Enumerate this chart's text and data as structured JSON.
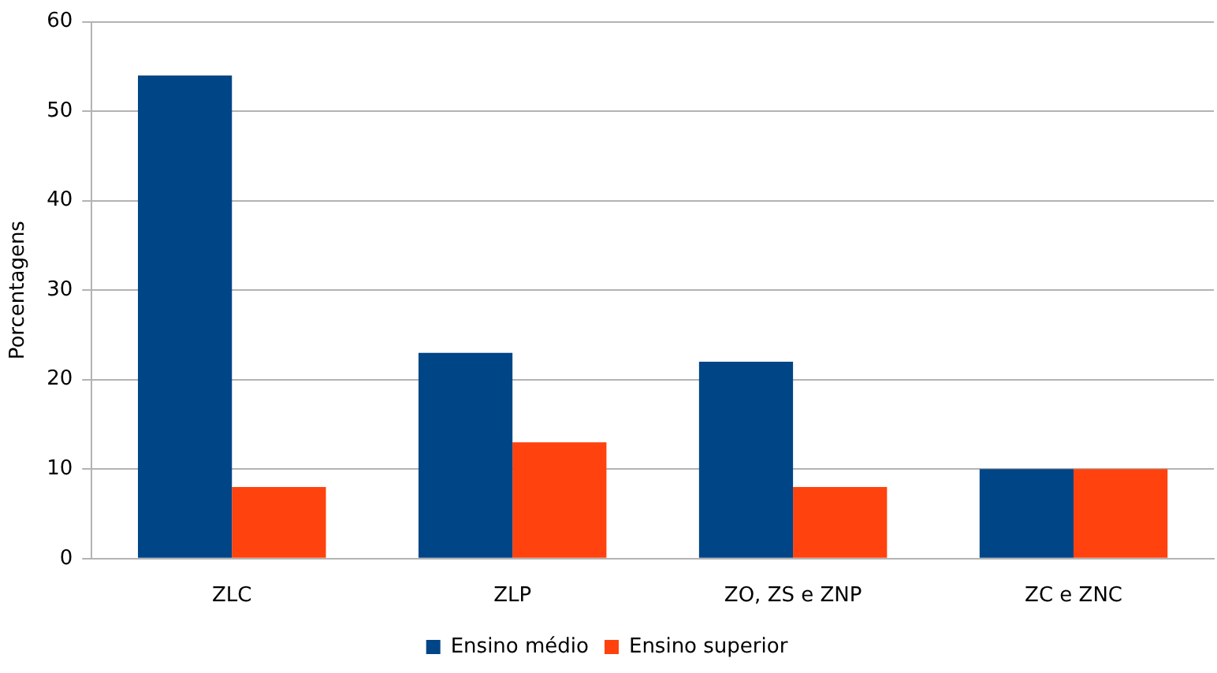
{
  "chart_data": {
    "type": "bar",
    "ylabel": "Porcentagens",
    "categories": [
      "ZLC",
      "ZLP",
      "ZO, ZS e ZNP",
      "ZC e ZNC"
    ],
    "series": [
      {
        "name": "Ensino médio",
        "color": "#004586",
        "values": [
          54,
          23,
          22,
          10
        ]
      },
      {
        "name": "Ensino superior",
        "color": "#ff420e",
        "values": [
          8,
          13,
          8,
          10
        ]
      }
    ],
    "ylim": [
      0,
      60
    ],
    "yticks": [
      0,
      10,
      20,
      30,
      40,
      50,
      60
    ],
    "grid": "y",
    "legend": "bottom"
  }
}
